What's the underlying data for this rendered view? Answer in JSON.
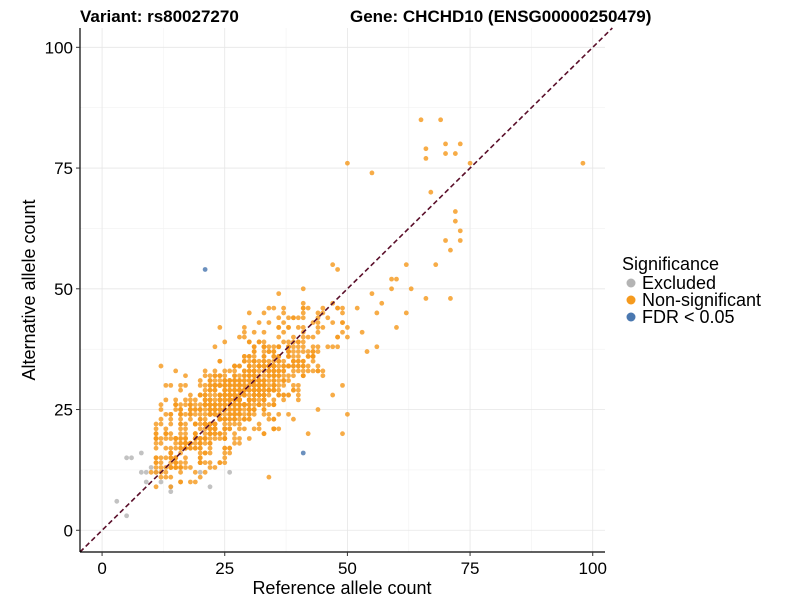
{
  "chart_data": {
    "type": "scatter",
    "title_variant": "Variant: rs80027270",
    "title_gene": "Gene: CHCHD10 (ENSG00000250479)",
    "xlabel": "Reference allele count",
    "ylabel": "Alternative allele count",
    "xlim": [
      -4.5,
      102.5
    ],
    "ylim": [
      -4.5,
      104
    ],
    "xticks": [
      0,
      25,
      50,
      75,
      100
    ],
    "yticks": [
      0,
      25,
      50,
      75,
      100
    ],
    "grid": true,
    "reference_line": {
      "type": "diagonal",
      "slope": 1,
      "intercept": 0,
      "style": "dashed",
      "color": "#5a0f2a"
    },
    "legend": {
      "title": "Significance",
      "position": "right",
      "entries": [
        {
          "label": "Excluded",
          "color": "#b4b4b4"
        },
        {
          "label": "Non-significant",
          "color": "#f59a1e"
        },
        {
          "label": "FDR < 0.05",
          "color": "#4a78b0"
        }
      ]
    },
    "series": [
      {
        "name": "Excluded",
        "color": "#b4b4b4",
        "points": [
          [
            3,
            6
          ],
          [
            5,
            3
          ],
          [
            5,
            15
          ],
          [
            6,
            15
          ],
          [
            8,
            12
          ],
          [
            8,
            16
          ],
          [
            9,
            12
          ],
          [
            9,
            10
          ],
          [
            10,
            13
          ],
          [
            11,
            12
          ],
          [
            12,
            10
          ],
          [
            14,
            8
          ],
          [
            14,
            9
          ],
          [
            22,
            9
          ],
          [
            20,
            12
          ],
          [
            26,
            12
          ]
        ]
      },
      {
        "name": "Non-significant",
        "color": "#f59a1e",
        "cluster": {
          "count": 980,
          "x_center": 27,
          "y_center": 27,
          "x_sd": 9.5,
          "y_sd": 8.5,
          "correlation": 0.78,
          "seed": 80027270
        },
        "points": [
          [
            65,
            85
          ],
          [
            66,
            79
          ],
          [
            66,
            77
          ],
          [
            69,
            85
          ],
          [
            70,
            80
          ],
          [
            70,
            78
          ],
          [
            72,
            78
          ],
          [
            73,
            80
          ],
          [
            75,
            76
          ],
          [
            98,
            76
          ],
          [
            50,
            76
          ],
          [
            55,
            74
          ],
          [
            67,
            70
          ],
          [
            72,
            66
          ],
          [
            72,
            64
          ],
          [
            73,
            62
          ],
          [
            73,
            60
          ],
          [
            71,
            58
          ],
          [
            70,
            60
          ],
          [
            68,
            55
          ],
          [
            62,
            55
          ],
          [
            59,
            52
          ],
          [
            63,
            50
          ],
          [
            71,
            48
          ],
          [
            66,
            48
          ],
          [
            62,
            45
          ],
          [
            57,
            47
          ],
          [
            60,
            42
          ],
          [
            56,
            38
          ],
          [
            53,
            41
          ],
          [
            48,
            46
          ],
          [
            50,
            40
          ],
          [
            49,
            20
          ],
          [
            50,
            24
          ],
          [
            44,
            25
          ],
          [
            46,
            38
          ],
          [
            38,
            44
          ],
          [
            40,
            30
          ],
          [
            34,
            46
          ],
          [
            32,
            43
          ],
          [
            29,
            41
          ],
          [
            42,
            20
          ],
          [
            34,
            11
          ],
          [
            12,
            34
          ],
          [
            13,
            30
          ],
          [
            11,
            13
          ],
          [
            10,
            12
          ],
          [
            13,
            21
          ],
          [
            15,
            15
          ],
          [
            16,
            10
          ],
          [
            18,
            10
          ],
          [
            19,
            10
          ]
        ]
      },
      {
        "name": "FDR < 0.05",
        "color": "#4a78b0",
        "points": [
          [
            21,
            54
          ],
          [
            41,
            16
          ]
        ]
      }
    ]
  }
}
